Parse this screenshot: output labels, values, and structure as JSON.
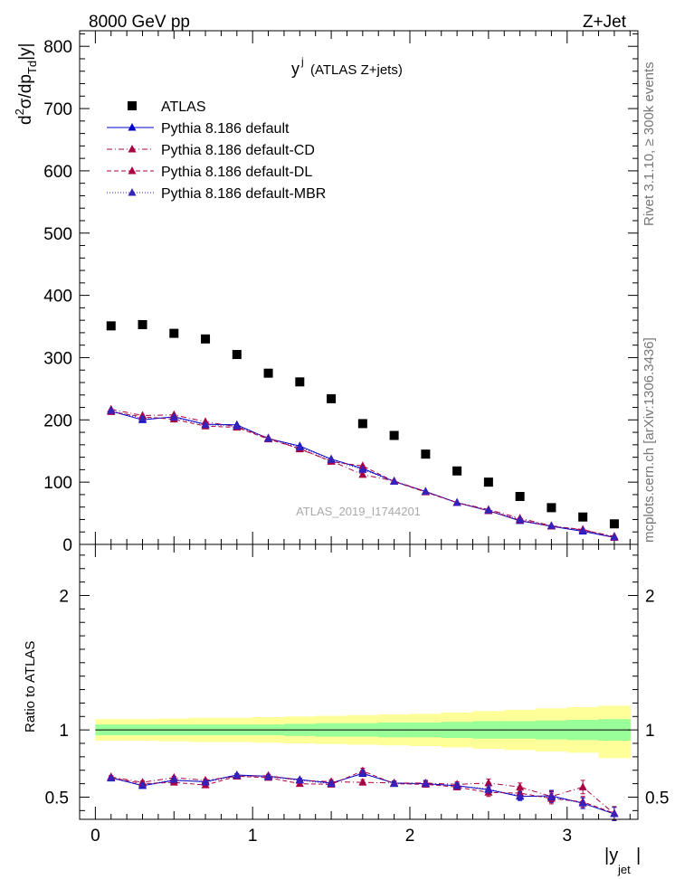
{
  "header": {
    "left": "8000 GeV pp",
    "right": "Z+Jet",
    "side_right_top": "Rivet 3.1.10, ≥ 300k events",
    "side_right_bottom": "mcplots.cern.ch [arXiv:1306.3436]",
    "watermark": "ATLAS_2019_I1744201"
  },
  "colors": {
    "atlas": "#000000",
    "default": "#0000cc",
    "cd": "#aa0044",
    "dl": "#aa0044",
    "mbr": "#3322bb",
    "band_inner": "#99ff99",
    "band_outer": "#ffff99"
  },
  "chart_data": [
    {
      "type": "scatter",
      "title": "y^j (ATLAS Z+jets)",
      "title_main": "y",
      "title_sup": "j",
      "title_rest": "(ATLAS Z+jets)",
      "ylabel": "d²σ/dp_Td|y|",
      "ylabel_parts": [
        "d",
        "2",
        "σ/dp",
        "Td",
        "|y|"
      ],
      "ylim": [
        0,
        825
      ],
      "yticks": [
        0,
        100,
        200,
        300,
        400,
        500,
        600,
        700,
        800
      ],
      "ytick_labels": [
        "0",
        "100",
        "200",
        "300",
        "400",
        "500",
        "600",
        "700",
        "800"
      ],
      "xlim": [
        -0.1,
        3.45
      ],
      "x": [
        0.1,
        0.3,
        0.5,
        0.7,
        0.9,
        1.1,
        1.3,
        1.5,
        1.7,
        1.9,
        2.1,
        2.3,
        2.5,
        2.7,
        2.9,
        3.1,
        3.3
      ],
      "legend": {
        "placement": "top-left",
        "entries": [
          "ATLAS",
          "Pythia 8.186 default",
          "Pythia 8.186 default-CD",
          "Pythia 8.186 default-DL",
          "Pythia 8.186 default-MBR"
        ]
      },
      "series": [
        {
          "name": "ATLAS",
          "style": "square",
          "values": [
            351,
            353,
            339,
            330,
            305,
            275,
            261,
            234,
            194,
            175,
            145,
            118,
            100,
            77,
            59,
            44,
            33
          ]
        },
        {
          "name": "Pythia 8.186 default",
          "style": "solid",
          "values": [
            214,
            200,
            205,
            193,
            192,
            170,
            158,
            137,
            122,
            101,
            85,
            67,
            54,
            38,
            29,
            21,
            11
          ]
        },
        {
          "name": "Pythia 8.186 default-CD",
          "style": "dashdot",
          "values": [
            217,
            207,
            208,
            197,
            189,
            171,
            153,
            134,
            112,
            102,
            85,
            67,
            56,
            42,
            30,
            23,
            13
          ]
        },
        {
          "name": "Pythia 8.186 default-DL",
          "style": "dashed",
          "values": [
            213,
            205,
            201,
            190,
            188,
            169,
            154,
            133,
            126,
            101,
            84,
            67,
            54,
            39,
            29,
            24,
            11
          ]
        },
        {
          "name": "Pythia 8.186 default-MBR",
          "style": "dotted",
          "values": [
            215,
            202,
            204,
            192,
            190,
            170,
            156,
            136,
            120,
            101,
            85,
            67,
            55,
            40,
            30,
            22,
            12
          ]
        }
      ]
    },
    {
      "type": "line",
      "ylabel": "Ratio to ATLAS",
      "xlabel": "|y_jet|",
      "xlabel_main": "|y",
      "xlabel_sub": "jet",
      "ylim": [
        0.335,
        2.38
      ],
      "yticks": [
        0.5,
        1,
        2
      ],
      "ytick_labels": [
        "0.5",
        "1",
        "2"
      ],
      "xlim": [
        -0.1,
        3.45
      ],
      "xticks": [
        0,
        1,
        2,
        3
      ],
      "xtick_labels": [
        "0",
        "1",
        "2",
        "3"
      ],
      "x": [
        0.1,
        0.3,
        0.5,
        0.7,
        0.9,
        1.1,
        1.3,
        1.5,
        1.7,
        1.9,
        2.1,
        2.3,
        2.5,
        2.7,
        2.9,
        3.1,
        3.3
      ],
      "band_inner": [
        0.04,
        0.04,
        0.04,
        0.04,
        0.04,
        0.04,
        0.045,
        0.05,
        0.05,
        0.055,
        0.055,
        0.06,
        0.065,
        0.065,
        0.07,
        0.075,
        0.08
      ],
      "band_outer": [
        0.08,
        0.08,
        0.085,
        0.09,
        0.09,
        0.095,
        0.1,
        0.105,
        0.11,
        0.115,
        0.12,
        0.13,
        0.14,
        0.15,
        0.16,
        0.17,
        0.18
      ],
      "band_outer_lower_last": 0.21,
      "series": [
        {
          "name": "Pythia 8.186 default",
          "style": "solid",
          "values": [
            0.645,
            0.585,
            0.625,
            0.615,
            0.665,
            0.655,
            0.63,
            0.605,
            0.675,
            0.605,
            0.6,
            0.585,
            0.555,
            0.505,
            0.51,
            0.455,
            0.375
          ],
          "errors": [
            0.01,
            0.01,
            0.01,
            0.01,
            0.01,
            0.01,
            0.01,
            0.015,
            0.02,
            0.015,
            0.02,
            0.02,
            0.03,
            0.03,
            0.04,
            0.04,
            0.05
          ]
        },
        {
          "name": "Pythia 8.186 default-CD",
          "style": "dashdot",
          "values": [
            0.65,
            0.61,
            0.645,
            0.625,
            0.655,
            0.66,
            0.625,
            0.615,
            0.61,
            0.605,
            0.605,
            0.595,
            0.605,
            0.575,
            0.505,
            0.575,
            0.375
          ],
          "errors": [
            0.01,
            0.01,
            0.01,
            0.01,
            0.01,
            0.01,
            0.01,
            0.015,
            0.02,
            0.015,
            0.02,
            0.02,
            0.03,
            0.03,
            0.04,
            0.05,
            0.05
          ]
        },
        {
          "name": "Pythia 8.186 default-DL",
          "style": "dashed",
          "values": [
            0.645,
            0.6,
            0.61,
            0.59,
            0.655,
            0.645,
            0.6,
            0.595,
            0.695,
            0.6,
            0.595,
            0.575,
            0.535,
            0.53,
            0.49,
            0.465,
            0.38
          ],
          "errors": [
            0.01,
            0.01,
            0.01,
            0.01,
            0.01,
            0.01,
            0.01,
            0.015,
            0.02,
            0.015,
            0.02,
            0.02,
            0.03,
            0.03,
            0.04,
            0.04,
            0.05
          ]
        },
        {
          "name": "Pythia 8.186 default-MBR",
          "style": "dotted",
          "values": [
            0.64,
            0.59,
            0.63,
            0.61,
            0.66,
            0.65,
            0.625,
            0.6,
            0.68,
            0.6,
            0.6,
            0.585,
            0.56,
            0.51,
            0.5,
            0.455,
            0.375
          ],
          "errors": [
            0.01,
            0.01,
            0.01,
            0.01,
            0.01,
            0.01,
            0.01,
            0.015,
            0.02,
            0.015,
            0.02,
            0.02,
            0.03,
            0.03,
            0.04,
            0.04,
            0.05
          ]
        }
      ]
    }
  ]
}
